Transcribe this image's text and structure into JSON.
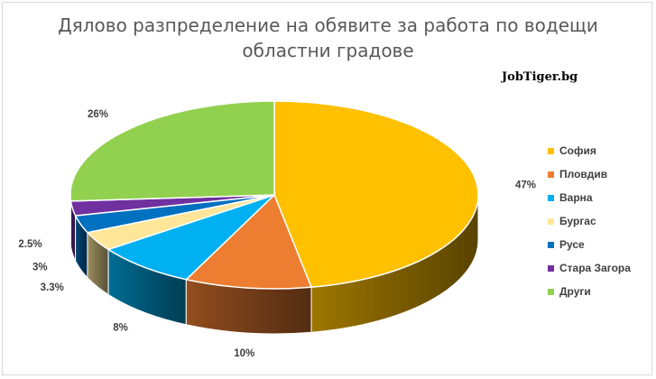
{
  "chart_data": {
    "type": "pie",
    "title": "Дялово разпределение на обявите за работа по водещи областни градове",
    "title_lines": [
      "Дялово разпределение на обявите за работа по водещи",
      "областни градове"
    ],
    "watermark": "JobTiger.bg",
    "legend_position": "right",
    "three_d": true,
    "categories": [
      "София",
      "Пловдив",
      "Варна",
      "Бургас",
      "Русе",
      "Стара Загора",
      "Други"
    ],
    "values": [
      47,
      10,
      8,
      3.3,
      3,
      2.5,
      26
    ],
    "value_labels": [
      "47%",
      "10%",
      "8%",
      "3.3%",
      "3%",
      "2.5%",
      "26%"
    ],
    "colors": [
      "#ffc000",
      "#ed7d31",
      "#00b0f0",
      "#ffe699",
      "#0070c0",
      "#7030a0",
      "#92d050"
    ]
  }
}
